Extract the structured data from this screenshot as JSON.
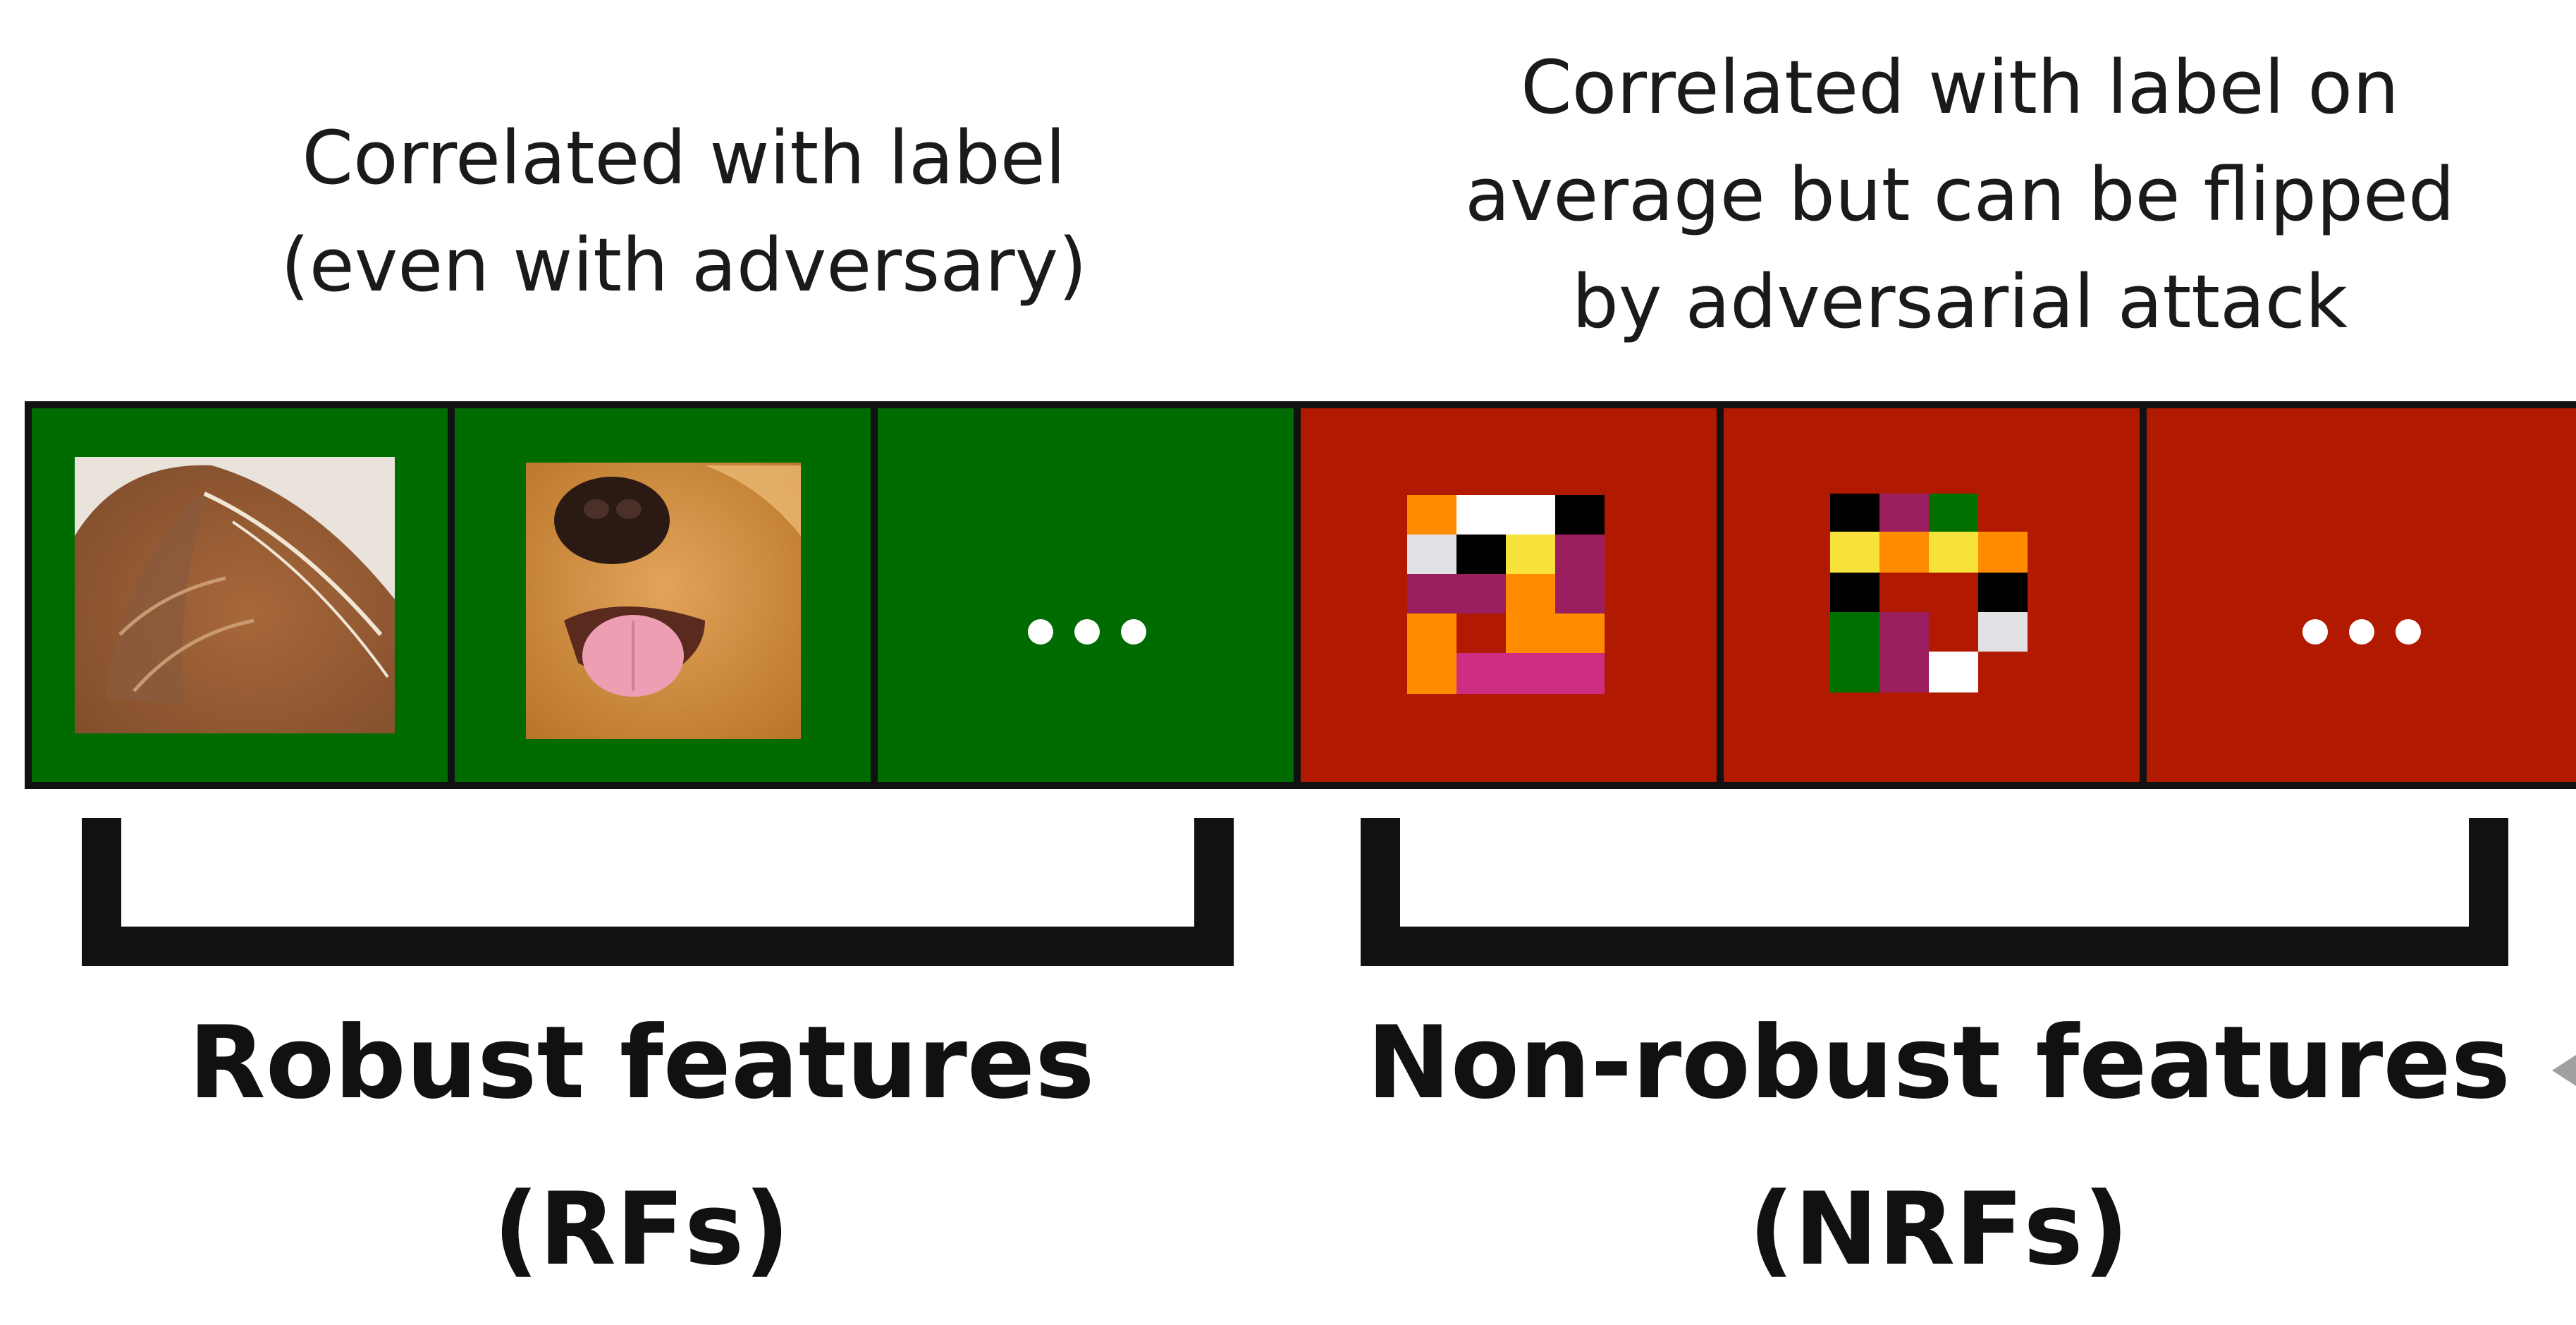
{
  "top_captions": {
    "robust": [
      "Correlated with label",
      "(even with adversary)"
    ],
    "nonrobust": [
      "Correlated with label on",
      "average but can be flipped",
      "by adversarial attack"
    ]
  },
  "feature_strip": {
    "robust_cells": [
      {
        "kind": "image",
        "icon": "cat-ear-photo-icon"
      },
      {
        "kind": "image",
        "icon": "dog-face-photo-icon"
      },
      {
        "kind": "ellipsis",
        "icon": "ellipsis-icon"
      }
    ],
    "nonrobust_cells": [
      {
        "kind": "pixel-pattern",
        "icon": "pixel-noise-pattern-icon"
      },
      {
        "kind": "pixel-pattern",
        "icon": "pixel-noise-pattern-icon"
      },
      {
        "kind": "ellipsis",
        "icon": "ellipsis-icon"
      }
    ]
  },
  "bottom_labels": {
    "robust": [
      "Robust features",
      "(RFs)"
    ],
    "nonrobust": [
      "Non-robust features",
      "(NRFs)"
    ]
  },
  "colors": {
    "robust_cell": "#006b00",
    "nonrobust_cell": "#b11a00",
    "border": "#111111",
    "bracket": "#111111",
    "dots": "#ffffff",
    "pattern_orange": "#ff8c00",
    "pattern_white": "#ffffff",
    "pattern_black": "#000000",
    "pattern_grey": "#e2e2e6",
    "pattern_yellow": "#f6e23a",
    "pattern_purple": "#9b1f5f",
    "pattern_pink": "#cf2d82",
    "pattern_green": "#007000"
  }
}
